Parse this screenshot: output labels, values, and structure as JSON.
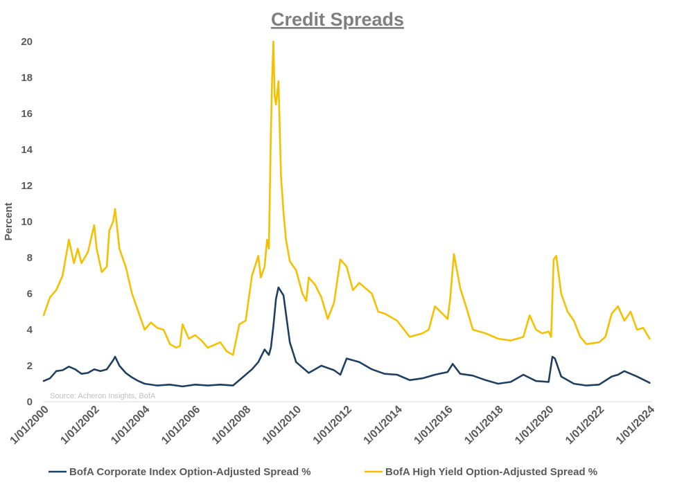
{
  "chart_data": {
    "type": "line",
    "title": "Credit Spreads",
    "xlabel": "",
    "ylabel": "Percent",
    "ylim": [
      0,
      20
    ],
    "yticks": [
      "0",
      "2",
      "4",
      "6",
      "8",
      "10",
      "12",
      "14",
      "16",
      "18",
      "20"
    ],
    "xlim": [
      2000.0,
      2024.1
    ],
    "xticks": [
      {
        "year": 2000,
        "label": "1/01/2000"
      },
      {
        "year": 2002,
        "label": "1/01/2002"
      },
      {
        "year": 2004,
        "label": "1/01/2004"
      },
      {
        "year": 2006,
        "label": "1/01/2006"
      },
      {
        "year": 2008,
        "label": "1/01/2008"
      },
      {
        "year": 2010,
        "label": "1/01/2010"
      },
      {
        "year": 2012,
        "label": "1/01/2012"
      },
      {
        "year": 2014,
        "label": "1/01/2014"
      },
      {
        "year": 2016,
        "label": "1/01/2016"
      },
      {
        "year": 2018,
        "label": "1/01/2018"
      },
      {
        "year": 2020,
        "label": "1/01/2020"
      },
      {
        "year": 2022,
        "label": "1/01/2022"
      },
      {
        "year": 2024,
        "label": "1/01/2024"
      }
    ],
    "grid": false,
    "legend_position": "bottom",
    "source": "Source: Acheron Insights, BofA",
    "series": [
      {
        "name": "BofA Corporate Index Option-Adjusted Spread %",
        "color": "#1f3f62",
        "x": [
          2000.0,
          2000.25,
          2000.5,
          2000.75,
          2001.0,
          2001.25,
          2001.5,
          2001.75,
          2002.0,
          2002.25,
          2002.5,
          2002.75,
          2002.83,
          2003.0,
          2003.25,
          2003.5,
          2003.75,
          2004.0,
          2004.5,
          2005.0,
          2005.5,
          2006.0,
          2006.5,
          2007.0,
          2007.5,
          2008.0,
          2008.25,
          2008.5,
          2008.75,
          2008.92,
          2009.0,
          2009.1,
          2009.2,
          2009.3,
          2009.5,
          2009.75,
          2010.0,
          2010.5,
          2011.0,
          2011.5,
          2011.75,
          2012.0,
          2012.5,
          2013.0,
          2013.5,
          2014.0,
          2014.5,
          2015.0,
          2015.5,
          2016.0,
          2016.2,
          2016.5,
          2017.0,
          2017.5,
          2018.0,
          2018.5,
          2019.0,
          2019.5,
          2020.0,
          2020.15,
          2020.25,
          2020.5,
          2021.0,
          2021.5,
          2022.0,
          2022.5,
          2022.75,
          2023.0,
          2023.5,
          2024.0
        ],
        "values": [
          1.15,
          1.3,
          1.7,
          1.75,
          1.95,
          1.8,
          1.55,
          1.6,
          1.8,
          1.7,
          1.8,
          2.3,
          2.5,
          2.0,
          1.6,
          1.35,
          1.15,
          1.0,
          0.9,
          0.95,
          0.85,
          0.95,
          0.9,
          0.95,
          0.9,
          1.5,
          1.8,
          2.2,
          2.9,
          2.6,
          3.0,
          4.2,
          5.7,
          6.35,
          5.9,
          3.3,
          2.2,
          1.6,
          2.0,
          1.75,
          1.5,
          2.4,
          2.2,
          1.8,
          1.55,
          1.5,
          1.2,
          1.3,
          1.5,
          1.65,
          2.1,
          1.55,
          1.45,
          1.2,
          1.0,
          1.1,
          1.5,
          1.15,
          1.1,
          2.5,
          2.4,
          1.4,
          1.0,
          0.9,
          0.95,
          1.4,
          1.5,
          1.7,
          1.4,
          1.05
        ]
      },
      {
        "name": "BofA High Yield Option-Adjusted Spread %",
        "color": "#f5c000",
        "x": [
          2000.0,
          2000.25,
          2000.5,
          2000.75,
          2001.0,
          2001.2,
          2001.35,
          2001.5,
          2001.75,
          2002.0,
          2002.1,
          2002.3,
          2002.5,
          2002.6,
          2002.75,
          2002.83,
          2003.0,
          2003.25,
          2003.5,
          2003.75,
          2004.0,
          2004.25,
          2004.5,
          2004.75,
          2005.0,
          2005.25,
          2005.4,
          2005.5,
          2005.75,
          2006.0,
          2006.25,
          2006.5,
          2007.0,
          2007.25,
          2007.5,
          2007.75,
          2008.0,
          2008.1,
          2008.25,
          2008.5,
          2008.6,
          2008.75,
          2008.85,
          2008.92,
          2009.0,
          2009.05,
          2009.1,
          2009.15,
          2009.2,
          2009.3,
          2009.4,
          2009.5,
          2009.6,
          2009.75,
          2010.0,
          2010.25,
          2010.4,
          2010.5,
          2010.75,
          2011.0,
          2011.25,
          2011.5,
          2011.75,
          2012.0,
          2012.25,
          2012.5,
          2012.75,
          2013.0,
          2013.25,
          2013.5,
          2013.75,
          2014.0,
          2014.5,
          2015.0,
          2015.25,
          2015.5,
          2016.0,
          2016.1,
          2016.25,
          2016.5,
          2016.75,
          2017.0,
          2017.5,
          2018.0,
          2018.5,
          2019.0,
          2019.25,
          2019.5,
          2019.75,
          2020.0,
          2020.1,
          2020.2,
          2020.3,
          2020.5,
          2020.75,
          2021.0,
          2021.25,
          2021.5,
          2022.0,
          2022.25,
          2022.5,
          2022.75,
          2023.0,
          2023.25,
          2023.5,
          2023.75,
          2024.0
        ],
        "values": [
          4.8,
          5.8,
          6.2,
          7.0,
          9.0,
          7.7,
          8.5,
          7.7,
          8.3,
          9.8,
          8.5,
          7.2,
          7.5,
          9.5,
          10.0,
          10.7,
          8.5,
          7.5,
          6.0,
          5.0,
          4.0,
          4.4,
          4.1,
          4.0,
          3.2,
          3.0,
          3.1,
          4.3,
          3.5,
          3.7,
          3.4,
          3.0,
          3.3,
          2.8,
          2.6,
          4.3,
          4.5,
          5.5,
          7.0,
          8.1,
          6.9,
          7.5,
          9.0,
          8.5,
          15.0,
          18.0,
          20.0,
          17.0,
          16.5,
          17.8,
          12.5,
          10.5,
          9.0,
          7.8,
          7.3,
          6.0,
          5.6,
          6.9,
          6.5,
          5.8,
          4.6,
          5.5,
          7.9,
          7.5,
          6.2,
          6.6,
          6.3,
          6.0,
          5.0,
          4.9,
          4.7,
          4.5,
          3.6,
          3.8,
          4.0,
          5.3,
          4.6,
          5.7,
          8.2,
          6.3,
          5.2,
          4.0,
          3.8,
          3.5,
          3.4,
          3.6,
          4.8,
          4.0,
          3.8,
          3.9,
          3.6,
          7.9,
          8.1,
          6.0,
          5.0,
          4.5,
          3.6,
          3.2,
          3.3,
          3.6,
          4.9,
          5.3,
          4.5,
          5.0,
          4.0,
          4.1,
          3.5
        ]
      }
    ]
  }
}
